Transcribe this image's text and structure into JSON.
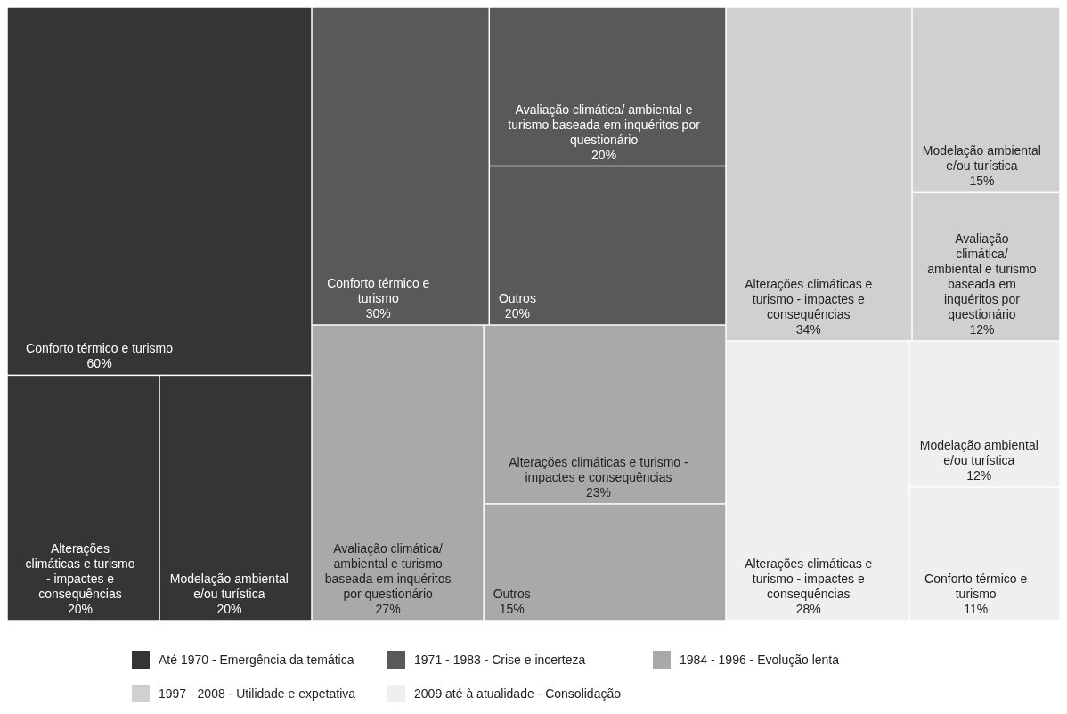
{
  "chart_data": {
    "type": "other",
    "legend": "bottom",
    "categories": [
      "Conforto térmico e turismo",
      "Alterações climáticas e turismo - impactes e consequências",
      "Modelação ambiental e/ou turística",
      "Conforto térmico e turismo",
      "Avaliação climática/ ambiental e turismo baseada em inquéritos por questionário",
      "Outros",
      "Avaliação climática/ ambiental e turismo baseada em inquéritos por questionário",
      "Alterações climáticas e turismo - impactes e consequências",
      "Outros",
      "Alterações climáticas e turismo - impactes e consequências",
      "Modelação ambiental e/ou turística",
      "Avaliação climática/ ambiental e turismo baseada em inquéritos por questionário",
      "Alterações climáticas e turismo - impactes e consequências",
      "Modelação ambiental e/ou turística",
      "Conforto térmico e turismo"
    ],
    "series": [
      {
        "name": "Até 1970 - Emergência da temática",
        "color": "#353535",
        "values": [
          60,
          20,
          20,
          null,
          null,
          null,
          null,
          null,
          null,
          null,
          null,
          null,
          null,
          null,
          null
        ],
        "value_labels": [
          "60%",
          "20%",
          "20%",
          null,
          null,
          null,
          null,
          null,
          null,
          null,
          null,
          null,
          null,
          null,
          null
        ]
      },
      {
        "name": "1971 - 1983 - Crise e incerteza",
        "color": "#595959",
        "values": [
          null,
          null,
          null,
          30,
          20,
          20,
          null,
          null,
          null,
          null,
          null,
          null,
          null,
          null,
          null
        ],
        "value_labels": [
          null,
          null,
          null,
          "30%",
          "20%",
          "20%",
          null,
          null,
          null,
          null,
          null,
          null,
          null,
          null,
          null
        ]
      },
      {
        "name": "1984 - 1996 - Evolução lenta",
        "color": "#aba8a8",
        "values": [
          null,
          null,
          null,
          null,
          null,
          null,
          27,
          23,
          15,
          null,
          null,
          null,
          null,
          null,
          null
        ],
        "value_labels": [
          null,
          null,
          null,
          null,
          null,
          null,
          "27%",
          "23%",
          "15%",
          null,
          null,
          null,
          null,
          null,
          null
        ]
      },
      {
        "name": "1997 - 2008 - Utilidade e expetativa",
        "color": "#d1cfcf",
        "values": [
          null,
          null,
          null,
          null,
          null,
          null,
          null,
          null,
          null,
          34,
          15,
          12,
          null,
          null,
          null
        ],
        "value_labels": [
          null,
          null,
          null,
          null,
          null,
          null,
          null,
          null,
          null,
          "34%",
          "15%",
          "12%",
          null,
          null,
          null
        ]
      },
      {
        "name": "2009 até à atualidade - Consolidação",
        "color": "#efefef",
        "values": [
          null,
          null,
          null,
          null,
          null,
          null,
          null,
          null,
          null,
          null,
          null,
          null,
          28,
          12,
          11
        ],
        "value_labels": [
          null,
          null,
          null,
          null,
          null,
          null,
          null,
          null,
          null,
          null,
          null,
          null,
          "28%",
          "12%",
          "11%"
        ]
      }
    ]
  }
}
